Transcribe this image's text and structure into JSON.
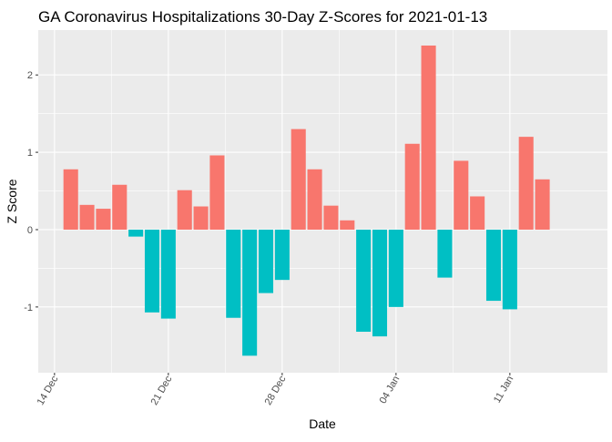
{
  "chart_data": {
    "type": "bar",
    "title": "GA Coronavirus Hospitalizations 30-Day Z-Scores for 2021-01-13",
    "xlabel": "Date",
    "ylabel": "Z Score",
    "x_ticks": [
      "14 Dec",
      "21 Dec",
      "28 Dec",
      "04 Jan",
      "11 Jan"
    ],
    "x_tick_dates": [
      "2020-12-14",
      "2020-12-21",
      "2020-12-28",
      "2021-01-04",
      "2021-01-11"
    ],
    "x_range": [
      "2020-12-13",
      "2021-01-17"
    ],
    "y_ticks": [
      -1,
      0,
      1,
      2
    ],
    "ylim": [
      -1.85,
      2.58
    ],
    "grid": true,
    "legend": "none",
    "colors": {
      "positive": "#F8766D",
      "negative": "#00BFC4",
      "panel": "#EBEBEB",
      "grid": "#FFFFFF"
    },
    "x": [
      "2020-12-15",
      "2020-12-16",
      "2020-12-17",
      "2020-12-18",
      "2020-12-19",
      "2020-12-20",
      "2020-12-21",
      "2020-12-22",
      "2020-12-23",
      "2020-12-24",
      "2020-12-25",
      "2020-12-26",
      "2020-12-27",
      "2020-12-28",
      "2020-12-29",
      "2020-12-30",
      "2020-12-31",
      "2021-01-01",
      "2021-01-02",
      "2021-01-03",
      "2021-01-04",
      "2021-01-05",
      "2021-01-06",
      "2021-01-07",
      "2021-01-08",
      "2021-01-09",
      "2021-01-10",
      "2021-01-11",
      "2021-01-12",
      "2021-01-13"
    ],
    "values": [
      0.78,
      0.32,
      0.27,
      0.58,
      -0.09,
      -1.07,
      -1.15,
      0.51,
      0.3,
      0.96,
      -1.14,
      -1.63,
      -0.82,
      -0.65,
      1.3,
      0.78,
      0.31,
      0.12,
      -1.32,
      -1.38,
      -1.0,
      1.11,
      2.38,
      -0.62,
      0.89,
      0.43,
      -0.92,
      -1.03,
      1.2,
      0.65
    ]
  }
}
